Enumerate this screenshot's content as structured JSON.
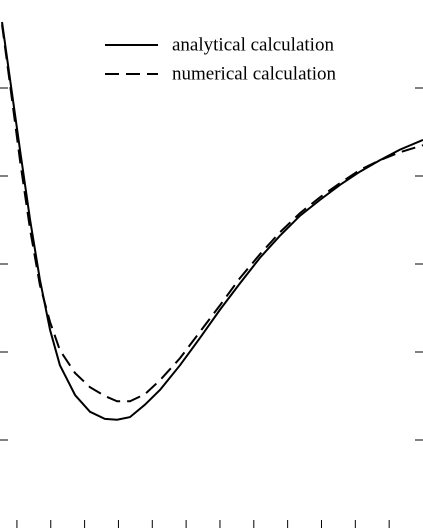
{
  "chart_data": {
    "type": "line",
    "x": [
      0.06,
      0.3,
      0.59,
      0.89,
      1.18,
      1.48,
      1.77,
      2.22,
      2.66,
      3.1,
      3.46,
      3.84,
      4.28,
      4.73,
      5.32,
      5.91,
      6.5,
      7.09,
      7.68,
      8.27,
      8.87,
      9.46,
      10.05,
      10.64,
      11.23,
      11.82,
      12.5
    ],
    "series": [
      {
        "name": "analytical calculation",
        "color": "#000000",
        "dash": "solid",
        "values": [
          5.75,
          5.09,
          4.3,
          3.5,
          2.82,
          2.25,
          1.85,
          1.51,
          1.32,
          1.24,
          1.23,
          1.26,
          1.4,
          1.57,
          1.85,
          2.16,
          2.48,
          2.78,
          3.07,
          3.32,
          3.55,
          3.73,
          3.9,
          4.05,
          4.18,
          4.3,
          4.41
        ]
      },
      {
        "name": "numerical calculation",
        "color": "#000000",
        "dash": "dashed",
        "values": [
          5.72,
          5.03,
          4.18,
          3.39,
          2.76,
          2.34,
          2.02,
          1.76,
          1.6,
          1.5,
          1.44,
          1.44,
          1.52,
          1.68,
          1.93,
          2.23,
          2.53,
          2.84,
          3.11,
          3.36,
          3.58,
          3.76,
          3.92,
          4.07,
          4.18,
          4.27,
          4.35
        ]
      }
    ],
    "xlim": [
      0,
      12.5
    ],
    "ylim": [
      0,
      6
    ],
    "xticks": [
      0.5,
      1.5,
      2.5,
      3.5,
      4.5,
      5.5,
      6.5,
      7.5,
      8.5,
      9.5,
      10.5,
      11.5
    ],
    "yticks": [
      1,
      2,
      3,
      4,
      5
    ],
    "legend": "upper-right"
  }
}
